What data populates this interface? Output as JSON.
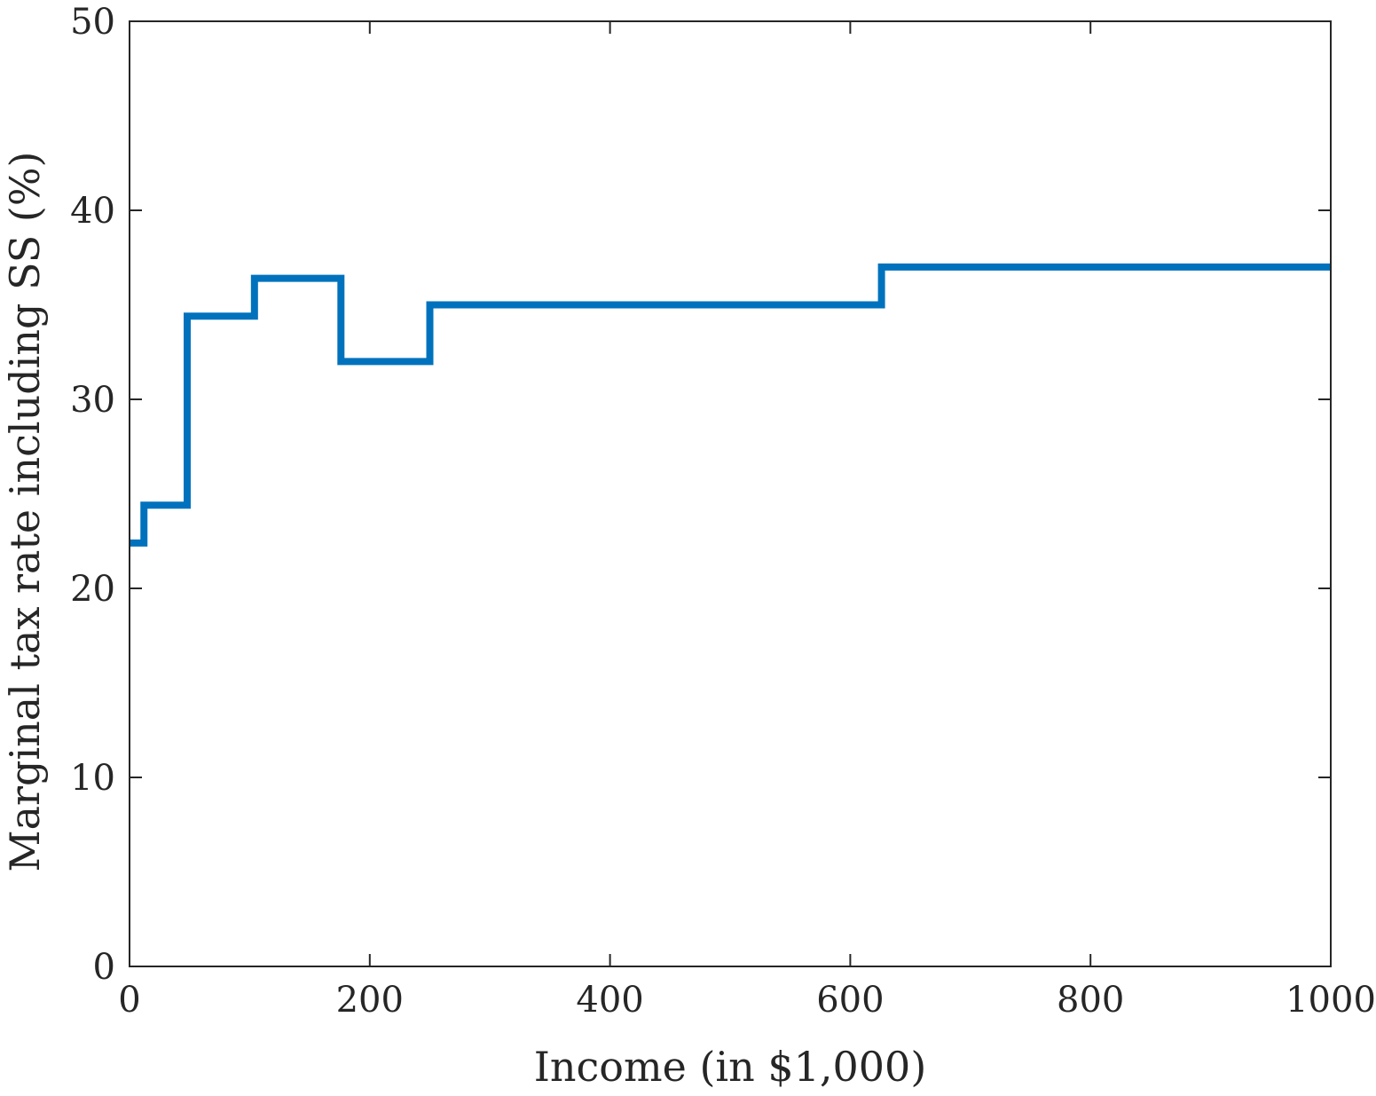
{
  "chart_data": {
    "type": "line",
    "line_style": "step",
    "title": "",
    "xlabel": "Income (in $1,000)",
    "ylabel": "Marginal tax rate including SS (%)",
    "xlim": [
      0,
      1000
    ],
    "ylim": [
      0,
      50
    ],
    "xticks": [
      0,
      200,
      400,
      600,
      800,
      1000
    ],
    "xtick_labels": [
      "0",
      "200",
      "400",
      "600",
      "800",
      "1000"
    ],
    "yticks": [
      0,
      10,
      20,
      30,
      40,
      50
    ],
    "ytick_labels": [
      "0",
      "10",
      "20",
      "30",
      "40",
      "50"
    ],
    "grid": false,
    "legend": "none",
    "series": [
      {
        "color": "#0072BD",
        "x": [
          0,
          12,
          12,
          48,
          48,
          104,
          104,
          176,
          176,
          250,
          250,
          626,
          626,
          1000
        ],
        "y": [
          22.4,
          22.4,
          24.4,
          24.4,
          34.4,
          34.4,
          36.4,
          36.4,
          32.0,
          32.0,
          35.0,
          35.0,
          37.0,
          37.0
        ]
      }
    ]
  }
}
